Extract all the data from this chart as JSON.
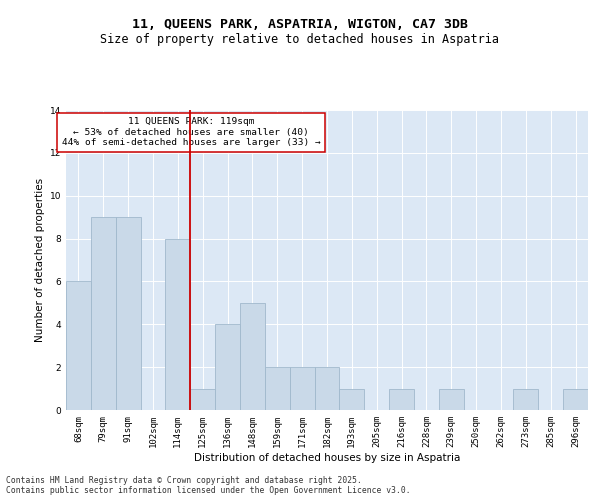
{
  "title": "11, QUEENS PARK, ASPATRIA, WIGTON, CA7 3DB",
  "subtitle": "Size of property relative to detached houses in Aspatria",
  "xlabel": "Distribution of detached houses by size in Aspatria",
  "ylabel": "Number of detached properties",
  "bar_labels": [
    "68sqm",
    "79sqm",
    "91sqm",
    "102sqm",
    "114sqm",
    "125sqm",
    "136sqm",
    "148sqm",
    "159sqm",
    "171sqm",
    "182sqm",
    "193sqm",
    "205sqm",
    "216sqm",
    "228sqm",
    "239sqm",
    "250sqm",
    "262sqm",
    "273sqm",
    "285sqm",
    "296sqm"
  ],
  "bar_values": [
    6,
    9,
    9,
    0,
    8,
    1,
    4,
    5,
    2,
    2,
    2,
    1,
    0,
    1,
    0,
    1,
    0,
    0,
    1,
    0,
    1
  ],
  "bar_color": "#c9d9e8",
  "bar_edgecolor": "#a0b8cc",
  "vline_x": 4.5,
  "vline_color": "#cc0000",
  "annotation_text": "11 QUEENS PARK: 119sqm\n← 53% of detached houses are smaller (40)\n44% of semi-detached houses are larger (33) →",
  "ylim": [
    0,
    14
  ],
  "yticks": [
    0,
    2,
    4,
    6,
    8,
    10,
    12,
    14
  ],
  "background_color": "#dce8f5",
  "footer_line1": "Contains HM Land Registry data © Crown copyright and database right 2025.",
  "footer_line2": "Contains public sector information licensed under the Open Government Licence v3.0.",
  "title_fontsize": 9.5,
  "subtitle_fontsize": 8.5,
  "axis_label_fontsize": 7.5,
  "tick_fontsize": 6.5,
  "footer_fontsize": 5.8,
  "annotation_fontsize": 6.8
}
